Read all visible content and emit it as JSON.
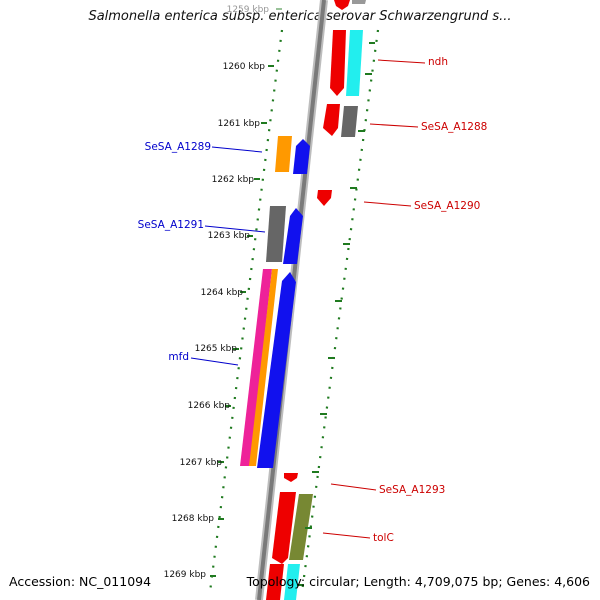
{
  "title": "Salmonella enterica subsp. enterica serovar Schwarzengrund s...",
  "accession_text": "Accession: NC_011094",
  "topology_text": "Topology: circular; Length: 4,709,075 bp; Genes: 4,606",
  "colors": {
    "backbone": "#888888",
    "tick_dash": "#1f7a1f",
    "forward_label": "#0000cc",
    "reverse_label": "#cc0000"
  },
  "ticks": [
    {
      "label": "1259 kbp",
      "faded": true
    },
    {
      "label": "1260 kbp"
    },
    {
      "label": "1261 kbp"
    },
    {
      "label": "1262 kbp"
    },
    {
      "label": "1263 kbp"
    },
    {
      "label": "1264 kbp"
    },
    {
      "label": "1265 kbp"
    },
    {
      "label": "1266 kbp"
    },
    {
      "label": "1267 kbp"
    },
    {
      "label": "1268 kbp"
    },
    {
      "label": "1269 kbp"
    }
  ],
  "gene_labels": [
    {
      "name": "ndh",
      "strand": "reverse"
    },
    {
      "name": "SeSA_A1288",
      "strand": "reverse"
    },
    {
      "name": "SeSA_A1289",
      "strand": "forward"
    },
    {
      "name": "SeSA_A1290",
      "strand": "reverse"
    },
    {
      "name": "SeSA_A1291",
      "strand": "forward"
    },
    {
      "name": "mfd",
      "strand": "forward"
    },
    {
      "name": "SeSA_A1293",
      "strand": "reverse"
    },
    {
      "name": "tolC",
      "strand": "reverse"
    }
  ],
  "feature_colors": {
    "red": "#ee0000",
    "cyan": "#22eeee",
    "gray": "#666666",
    "orange": "#ff9900",
    "blue": "#1111ee",
    "magenta": "#ee2299",
    "olive": "#778833"
  }
}
